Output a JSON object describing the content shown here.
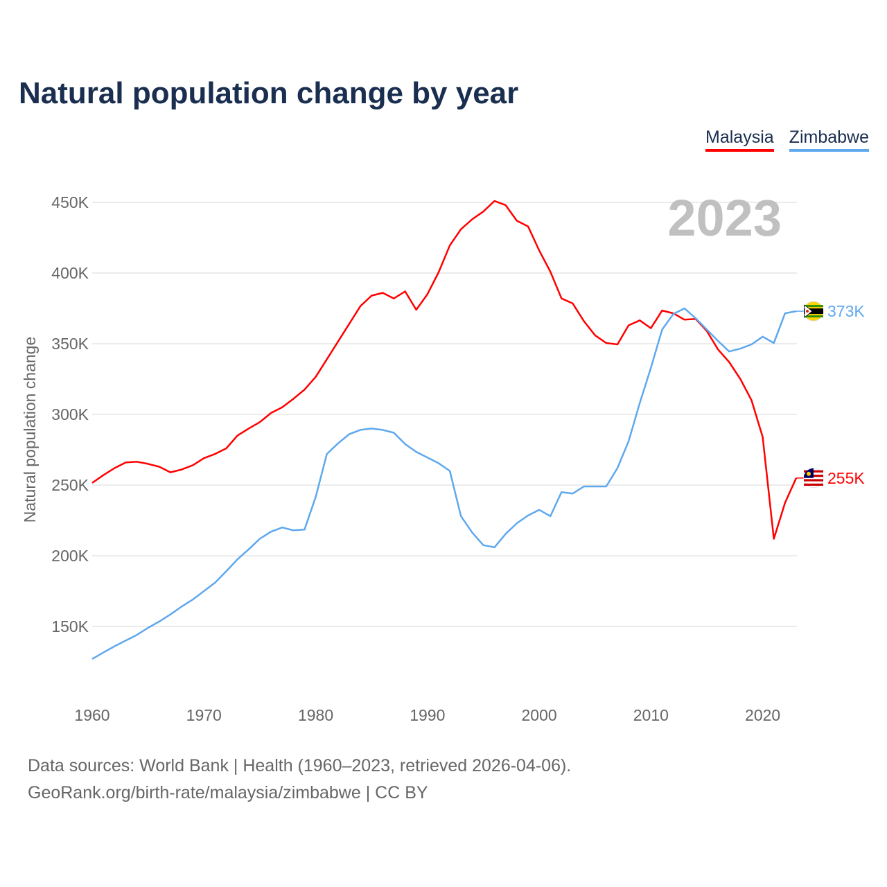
{
  "title": "Natural population change by year",
  "legend": [
    {
      "label": "Malaysia",
      "color": "#ff0000"
    },
    {
      "label": "Zimbabwe",
      "color": "#5ea8ee"
    }
  ],
  "year_badge": "2023",
  "footer": {
    "line1": "Data sources: World Bank | Health (1960–2023, retrieved 2026-04-06).",
    "line2": "GeoRank.org/birth-rate/malaysia/zimbabwe | CC BY"
  },
  "chart_data": {
    "type": "line",
    "title": "Natural population change by year",
    "xlabel": "",
    "ylabel": "Natural population change",
    "xlim": [
      1960,
      2023
    ],
    "ylim": [
      100,
      450
    ],
    "x_ticks": [
      "1960",
      "1970",
      "1980",
      "1990",
      "2000",
      "2010",
      "2020"
    ],
    "y_ticks": [
      {
        "value": 150,
        "label": "150K"
      },
      {
        "value": 200,
        "label": "200K"
      },
      {
        "value": 250,
        "label": "250K"
      },
      {
        "value": 300,
        "label": "300K"
      },
      {
        "value": 350,
        "label": "350K"
      },
      {
        "value": 400,
        "label": "400K"
      },
      {
        "value": 450,
        "label": "450K"
      }
    ],
    "units": "thousands",
    "x": [
      1960,
      1961,
      1962,
      1963,
      1964,
      1965,
      1966,
      1967,
      1968,
      1969,
      1970,
      1971,
      1972,
      1973,
      1974,
      1975,
      1976,
      1977,
      1978,
      1979,
      1980,
      1981,
      1982,
      1983,
      1984,
      1985,
      1986,
      1987,
      1988,
      1989,
      1990,
      1991,
      1992,
      1993,
      1994,
      1995,
      1996,
      1997,
      1998,
      1999,
      2000,
      2001,
      2002,
      2003,
      2004,
      2005,
      2006,
      2007,
      2008,
      2009,
      2010,
      2011,
      2012,
      2013,
      2014,
      2015,
      2016,
      2017,
      2018,
      2019,
      2020,
      2021,
      2022,
      2023
    ],
    "series": [
      {
        "name": "Malaysia",
        "color": "#ff0000",
        "end_label": "255K",
        "values": [
          251.5,
          257,
          262,
          266,
          266.5,
          265,
          263,
          259,
          261,
          264,
          269,
          272,
          276,
          285,
          290,
          294.5,
          301,
          305,
          311,
          317.5,
          326.5,
          339,
          351.5,
          364,
          376.5,
          384,
          386,
          382,
          387,
          374,
          385,
          400.5,
          419.5,
          431,
          438,
          443.5,
          451,
          448,
          437,
          433,
          416,
          401,
          382,
          378.5,
          366,
          356,
          350.5,
          349.5,
          363,
          366.5,
          361,
          373.5,
          371.5,
          367,
          367.5,
          359,
          346,
          337,
          325,
          310,
          284,
          212,
          237.5,
          255
        ]
      },
      {
        "name": "Zimbabwe",
        "color": "#5ea8ee",
        "end_label": "373K",
        "values": [
          127,
          131.5,
          136,
          140,
          144,
          149,
          153.5,
          158.5,
          164,
          169,
          175,
          181,
          189,
          197.5,
          204.5,
          212,
          217,
          220,
          218,
          218.5,
          241.5,
          272,
          279.5,
          286,
          289,
          290,
          289,
          287,
          279,
          273.5,
          269.5,
          265.5,
          260,
          228,
          216.5,
          207.5,
          206,
          215.5,
          223,
          228.5,
          232.5,
          228,
          245,
          244,
          249,
          249,
          249,
          262,
          281,
          308,
          333,
          360,
          371,
          375,
          368,
          360,
          352,
          344.5,
          346.5,
          349.5,
          355,
          350.5,
          371.5,
          373
        ]
      }
    ],
    "grid": true,
    "legend_position": "top-right"
  }
}
